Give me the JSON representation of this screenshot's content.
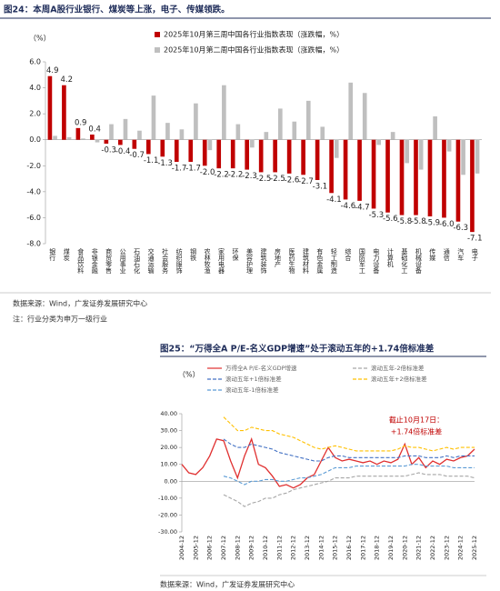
{
  "chart_data": [
    {
      "type": "bar",
      "title": "图24：本周A股行业银行、煤炭等上涨，电子、传媒领跌。",
      "y_unit": "（%）",
      "categories": [
        "银行",
        "煤炭",
        "食品饮料",
        "非银金融",
        "商贸零售",
        "公用事业",
        "石油石化",
        "交通运输",
        "社会服务",
        "纺织服饰",
        "钢铁",
        "农林牧渔",
        "家用电器",
        "环保",
        "美容护理",
        "建筑装饰",
        "房地产",
        "医药生物",
        "建筑材料",
        "有色金属",
        "轻工制造",
        "综合",
        "国防军工",
        "电力设备",
        "计算机",
        "基础化工",
        "机械设备",
        "传媒",
        "通信",
        "汽车",
        "电子"
      ],
      "series": [
        {
          "name": "2025年10月第三周中国各行业指数表现（涨跌幅，%）",
          "color": "#c00000",
          "values": [
            4.9,
            4.2,
            0.9,
            0.4,
            -0.3,
            -0.4,
            -0.7,
            -1.1,
            -1.3,
            -1.7,
            -1.7,
            -2.0,
            -2.2,
            -2.2,
            -2.3,
            -2.5,
            -2.5,
            -2.6,
            -2.7,
            -3.1,
            -4.1,
            -4.6,
            -4.7,
            -5.3,
            -5.6,
            -5.8,
            -5.8,
            -5.9,
            -6.0,
            -6.3,
            -7.1
          ],
          "value_labels": [
            "4.9",
            "4.2",
            "0.9",
            "0.4",
            "-0.3",
            "-0.4",
            "-0.7",
            "-1.1",
            "-1.3",
            "-1.7",
            "-1.7",
            "-2.0",
            "-2.2",
            "-2.2",
            "-2.3",
            "-2.5",
            "-2.5",
            "-2.6",
            "-2.7",
            "-3.1",
            "-4.1",
            "-4.6",
            "-4.7",
            "-5.3",
            "-5.6",
            "-5.8",
            "-5.8",
            "-5.9",
            "-6.0",
            "-6.3",
            "-7.1"
          ]
        },
        {
          "name": "2025年10月第二周中国各行业指数表现（涨跌幅，%）",
          "color": "#bfbfbf",
          "values": [
            0.3,
            0.2,
            0.1,
            -0.2,
            1.2,
            1.6,
            0.7,
            3.4,
            1.3,
            0.8,
            2.8,
            -0.8,
            4.2,
            1.2,
            -0.6,
            0.6,
            2.4,
            1.4,
            3.0,
            1.0,
            -1.4,
            4.4,
            3.6,
            -0.4,
            0.6,
            -1.8,
            -2.3,
            1.8,
            -0.9,
            -2.7,
            -2.6
          ]
        }
      ],
      "ylim": [
        -8,
        6
      ],
      "yticks": [
        {
          "value": -8,
          "label": "-8.0"
        },
        {
          "value": -6,
          "label": "-6.0"
        },
        {
          "value": -4,
          "label": "-4.0"
        },
        {
          "value": -2,
          "label": "-2.0"
        },
        {
          "value": 0,
          "label": "0.0"
        },
        {
          "value": 2,
          "label": "2.0"
        },
        {
          "value": 4,
          "label": "4.0"
        },
        {
          "value": 6,
          "label": "6.0"
        }
      ],
      "grid": false,
      "source": "数据来源：Wind，广发证券发展研究中心",
      "note": "注：行业分类为申万一级行业"
    },
    {
      "type": "line",
      "title": "图25：“万得全A P/E-名义GDP增速”处于滚动五年的+1.74倍标准差",
      "y_unit": "（%）",
      "annotation": [
        "截止10月17日：",
        "+1.74倍标准差"
      ],
      "categories": [
        "2004-12",
        null,
        "2005-12",
        null,
        "2006-12",
        null,
        "2007-12",
        null,
        "2008-12",
        null,
        "2009-12",
        null,
        "2010-12",
        null,
        "2011-12",
        null,
        "2012-12",
        null,
        "2013-12",
        null,
        "2014-12",
        null,
        "2015-12",
        null,
        "2016-12",
        null,
        "2017-12",
        null,
        "2018-12",
        null,
        "2019-12",
        null,
        "2020-12",
        null,
        "2021-12",
        null,
        "2022-12",
        null,
        "2023-12",
        null,
        "2024-12",
        null,
        "2025-12"
      ],
      "series": [
        {
          "name": "万得全A P/E-名义GDP增速",
          "color": "#e03030",
          "dash": false,
          "values": [
            10,
            5,
            4,
            8,
            15,
            25,
            24,
            12,
            2,
            15,
            25,
            10,
            8,
            3,
            -3,
            -2,
            -4,
            -2,
            2,
            4,
            12,
            20,
            14,
            12,
            13,
            12,
            11,
            12,
            10,
            12,
            11,
            13,
            22,
            10,
            14,
            8,
            12,
            10,
            13,
            12,
            14,
            15,
            19
          ]
        },
        {
          "name": "滚动五年-2倍标准差",
          "color": "#a6a6a6",
          "dash": true,
          "values": [
            null,
            null,
            null,
            null,
            null,
            null,
            -8,
            -10,
            -12,
            -15,
            -13,
            -12,
            -10,
            -10,
            -8,
            -7,
            -5,
            -4,
            -3,
            -2,
            -1,
            0,
            2,
            2,
            2,
            3,
            3,
            3,
            3,
            3,
            3,
            3,
            3,
            4,
            5,
            4,
            4,
            4,
            3,
            3,
            3,
            3,
            2
          ]
        },
        {
          "name": "滚动五年+1倍标准差",
          "color": "#4472c4",
          "dash": true,
          "values": [
            null,
            null,
            null,
            null,
            null,
            null,
            25,
            22,
            20,
            20,
            22,
            21,
            20,
            19,
            17,
            16,
            15,
            14,
            13,
            12,
            12,
            14,
            15,
            15,
            14,
            14,
            14,
            14,
            14,
            14,
            14,
            14,
            15,
            15,
            15,
            14,
            14,
            14,
            15,
            14,
            15,
            15,
            15
          ]
        },
        {
          "name": "滚动五年+2倍标准差",
          "color": "#ffc000",
          "dash": true,
          "values": [
            null,
            null,
            null,
            null,
            null,
            null,
            38,
            34,
            30,
            30,
            32,
            31,
            30,
            30,
            28,
            27,
            26,
            24,
            22,
            20,
            19,
            20,
            21,
            20,
            19,
            18,
            18,
            18,
            18,
            18,
            18,
            19,
            21,
            20,
            20,
            19,
            18,
            19,
            20,
            19,
            20,
            20,
            20
          ]
        },
        {
          "name": "滚动五年-1倍标准差",
          "color": "#5b9bd5",
          "dash": true,
          "values": [
            null,
            null,
            null,
            null,
            null,
            null,
            3,
            2,
            0,
            -2,
            0,
            0,
            1,
            1,
            0,
            0,
            1,
            2,
            2,
            3,
            4,
            6,
            8,
            8,
            8,
            9,
            9,
            9,
            9,
            9,
            9,
            9,
            9,
            10,
            10,
            9,
            9,
            9,
            9,
            8,
            8,
            8,
            8
          ]
        }
      ],
      "ylim": [
        -30,
        40
      ],
      "yticks": [
        {
          "value": -30,
          "label": "-30.00"
        },
        {
          "value": -20,
          "label": "-20.00"
        },
        {
          "value": -10,
          "label": "-10.00"
        },
        {
          "value": 0,
          "label": "0.00"
        },
        {
          "value": 10,
          "label": "10.00"
        },
        {
          "value": 20,
          "label": "20.00"
        },
        {
          "value": 30,
          "label": "30.00"
        },
        {
          "value": 40,
          "label": "40.00"
        }
      ],
      "grid": false,
      "source": "数据来源：Wind，广发证券发展研究中心"
    }
  ]
}
